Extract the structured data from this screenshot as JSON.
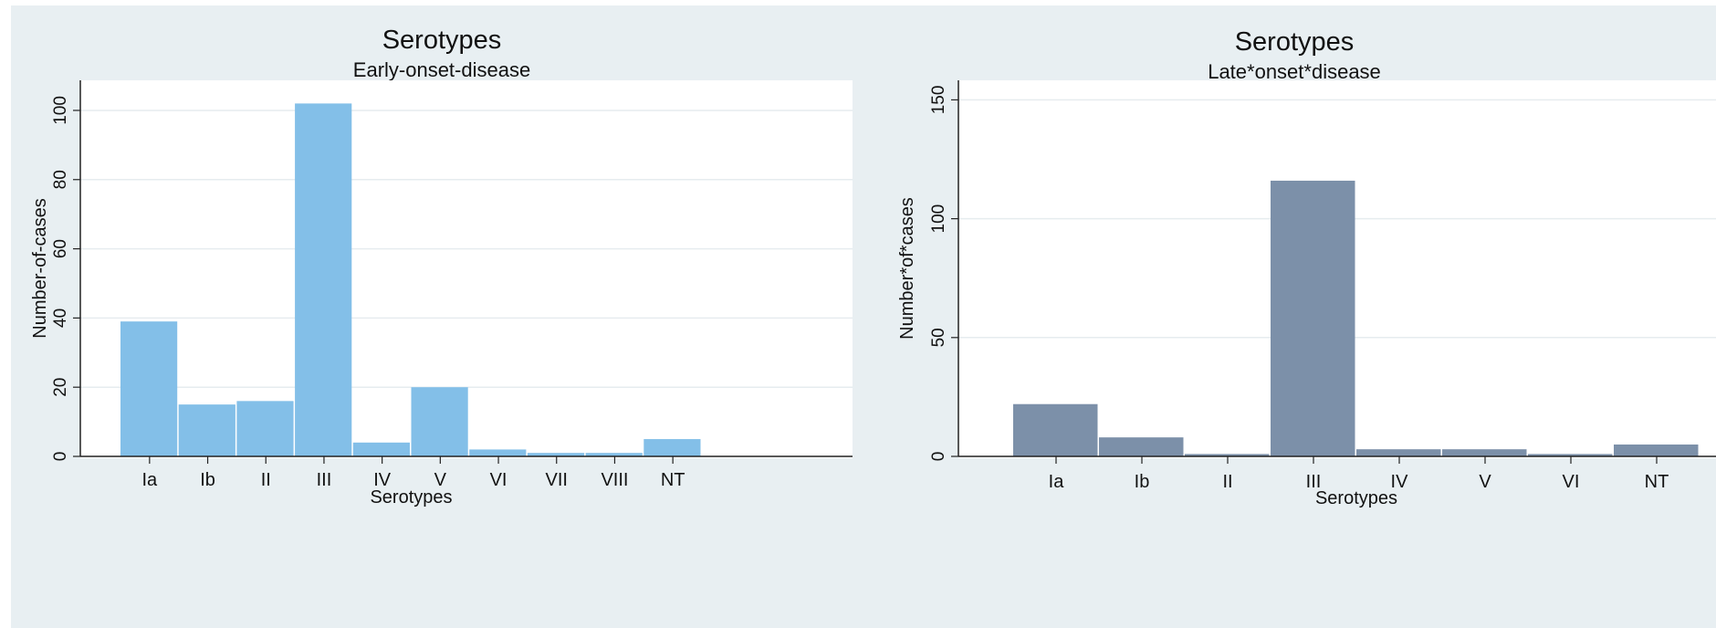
{
  "chart_data": [
    {
      "type": "bar",
      "title": "Serotypes",
      "subtitle": "Early-onset-disease",
      "xlabel": "Serotypes",
      "ylabel": "Number-of-cases",
      "categories": [
        "Ia",
        "Ib",
        "II",
        "III",
        "IV",
        "V",
        "VI",
        "VII",
        "VIII",
        "NT"
      ],
      "values": [
        39,
        15,
        16,
        102,
        4,
        20,
        2,
        1,
        1,
        5
      ],
      "yticks": [
        0,
        20,
        40,
        60,
        80,
        100
      ],
      "ylim": [
        0,
        105
      ],
      "grid": true,
      "color": "#83bfe8"
    },
    {
      "type": "bar",
      "title": "Serotypes",
      "subtitle": "Late*onset*disease",
      "xlabel": "Serotypes",
      "ylabel": "Number*of*cases",
      "categories": [
        "Ia",
        "Ib",
        "II",
        "III",
        "IV",
        "V",
        "VI",
        "NT"
      ],
      "values": [
        22,
        8,
        1,
        116,
        3,
        3,
        1,
        5
      ],
      "yticks": [
        0,
        50,
        100,
        150
      ],
      "ylim": [
        0,
        154
      ],
      "grid": true,
      "color": "#7c90a9"
    }
  ]
}
